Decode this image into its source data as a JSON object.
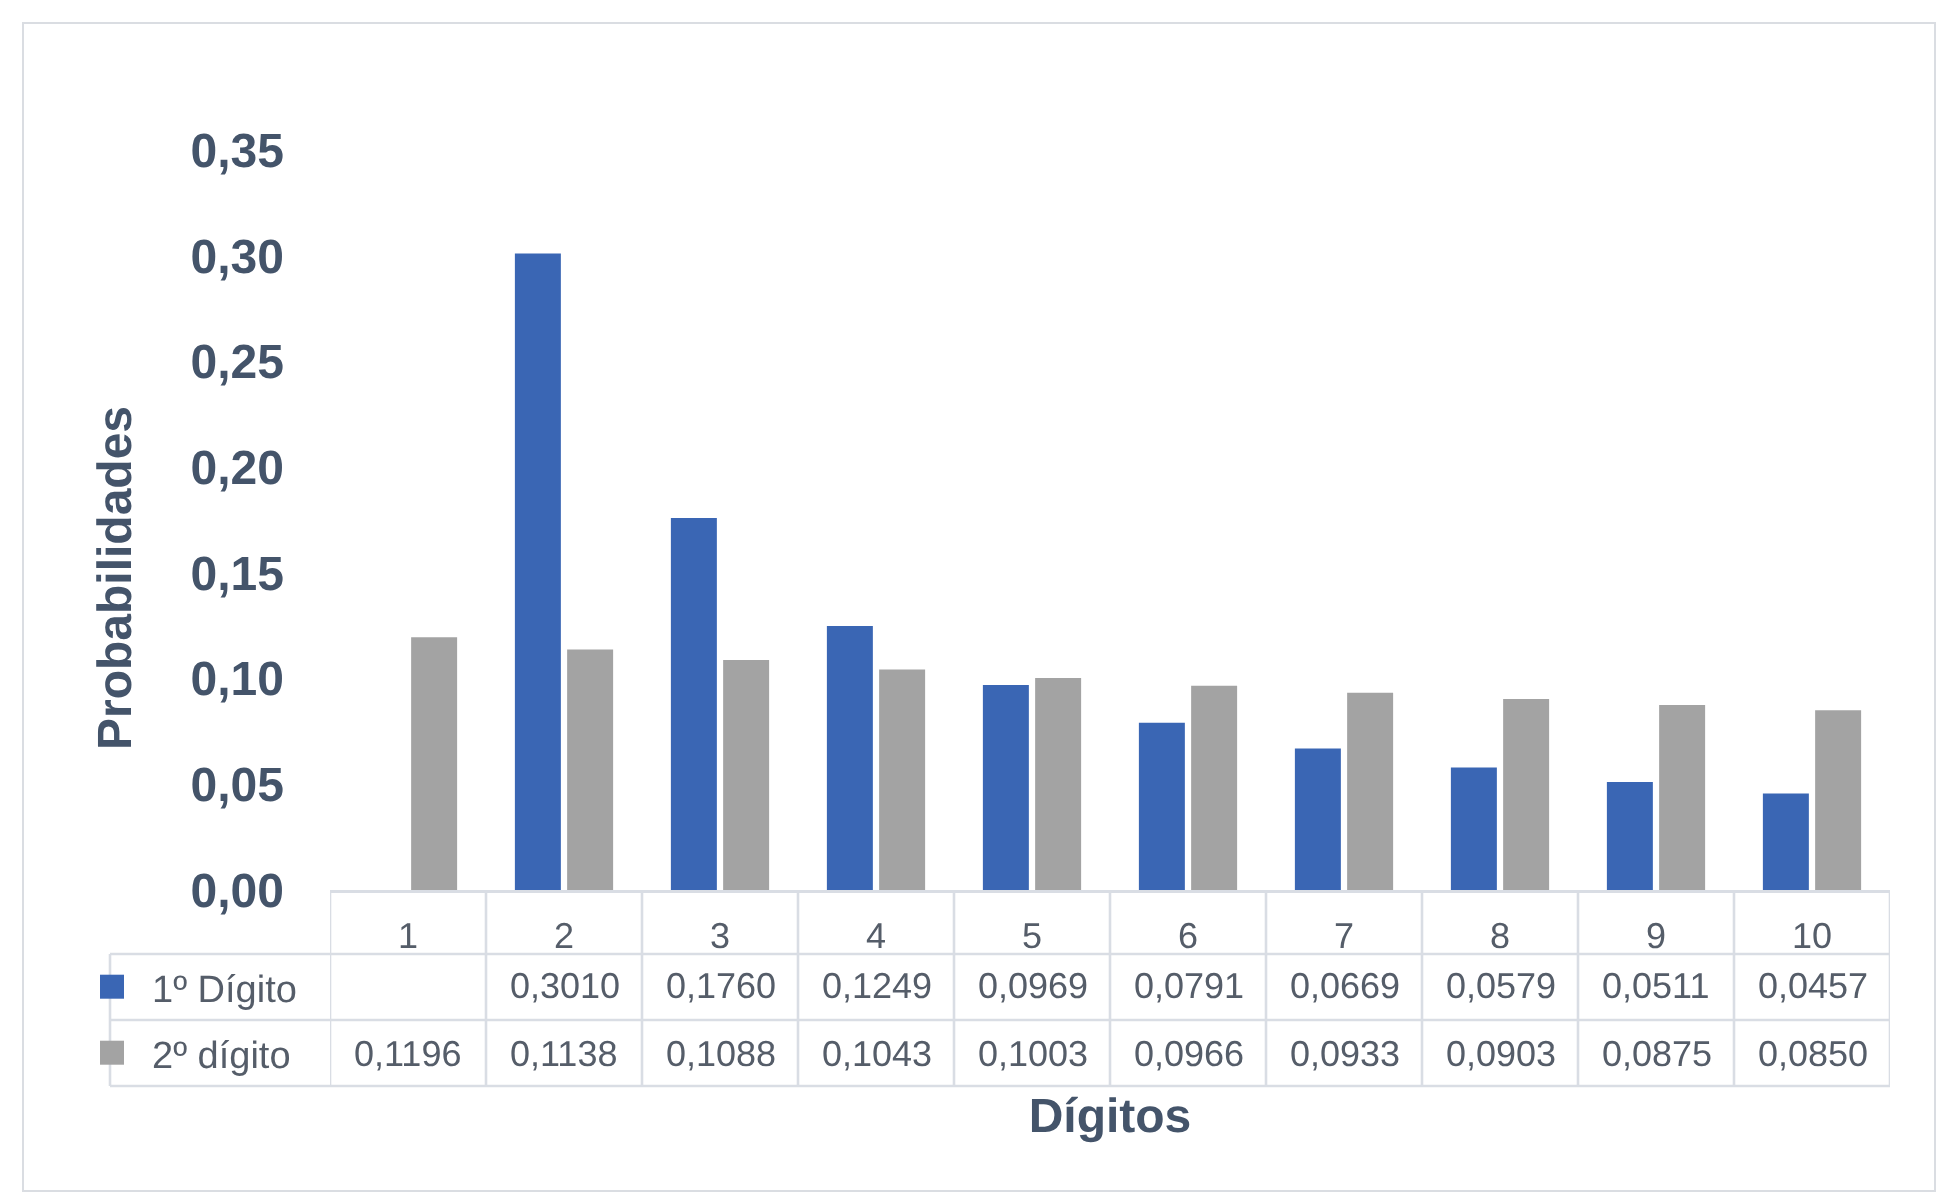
{
  "chart_data": {
    "type": "bar",
    "xlabel": "Dígitos",
    "ylabel": "Probabilidades",
    "categories": [
      "1",
      "2",
      "3",
      "4",
      "5",
      "6",
      "7",
      "8",
      "9",
      "10"
    ],
    "series": [
      {
        "name": "1º Dígito",
        "color": "#3a66b4",
        "values": [
          null,
          0.301,
          0.176,
          0.1249,
          0.0969,
          0.0791,
          0.0669,
          0.0579,
          0.0511,
          0.0457
        ],
        "value_labels": [
          null,
          "0,3010",
          "0,1760",
          "0,1249",
          "0,0969",
          "0,0791",
          "0,0669",
          "0,0579",
          "0,0511",
          "0,0457"
        ]
      },
      {
        "name": "2º dígito",
        "color": "#a3a3a3",
        "values": [
          0.1196,
          0.1138,
          0.1088,
          0.1043,
          0.1003,
          0.0966,
          0.0933,
          0.0903,
          0.0875,
          0.085
        ],
        "value_labels": [
          "0,1196",
          "0,1138",
          "0,1088",
          "0,1043",
          "0,1003",
          "0,0966",
          "0,0933",
          "0,0903",
          "0,0875",
          "0,0850"
        ]
      }
    ],
    "ylim": [
      0,
      0.35
    ],
    "yticks": [
      {
        "value": 0,
        "label": "0,00"
      },
      {
        "value": 0.05,
        "label": "0,05"
      },
      {
        "value": 0.1,
        "label": "0,10"
      },
      {
        "value": 0.15,
        "label": "0,15"
      },
      {
        "value": 0.2,
        "label": "0,20"
      },
      {
        "value": 0.25,
        "label": "0,25"
      },
      {
        "value": 0.3,
        "label": "0,30"
      },
      {
        "value": 0.35,
        "label": "0,35"
      }
    ],
    "grid": false,
    "legend": "bottom"
  }
}
